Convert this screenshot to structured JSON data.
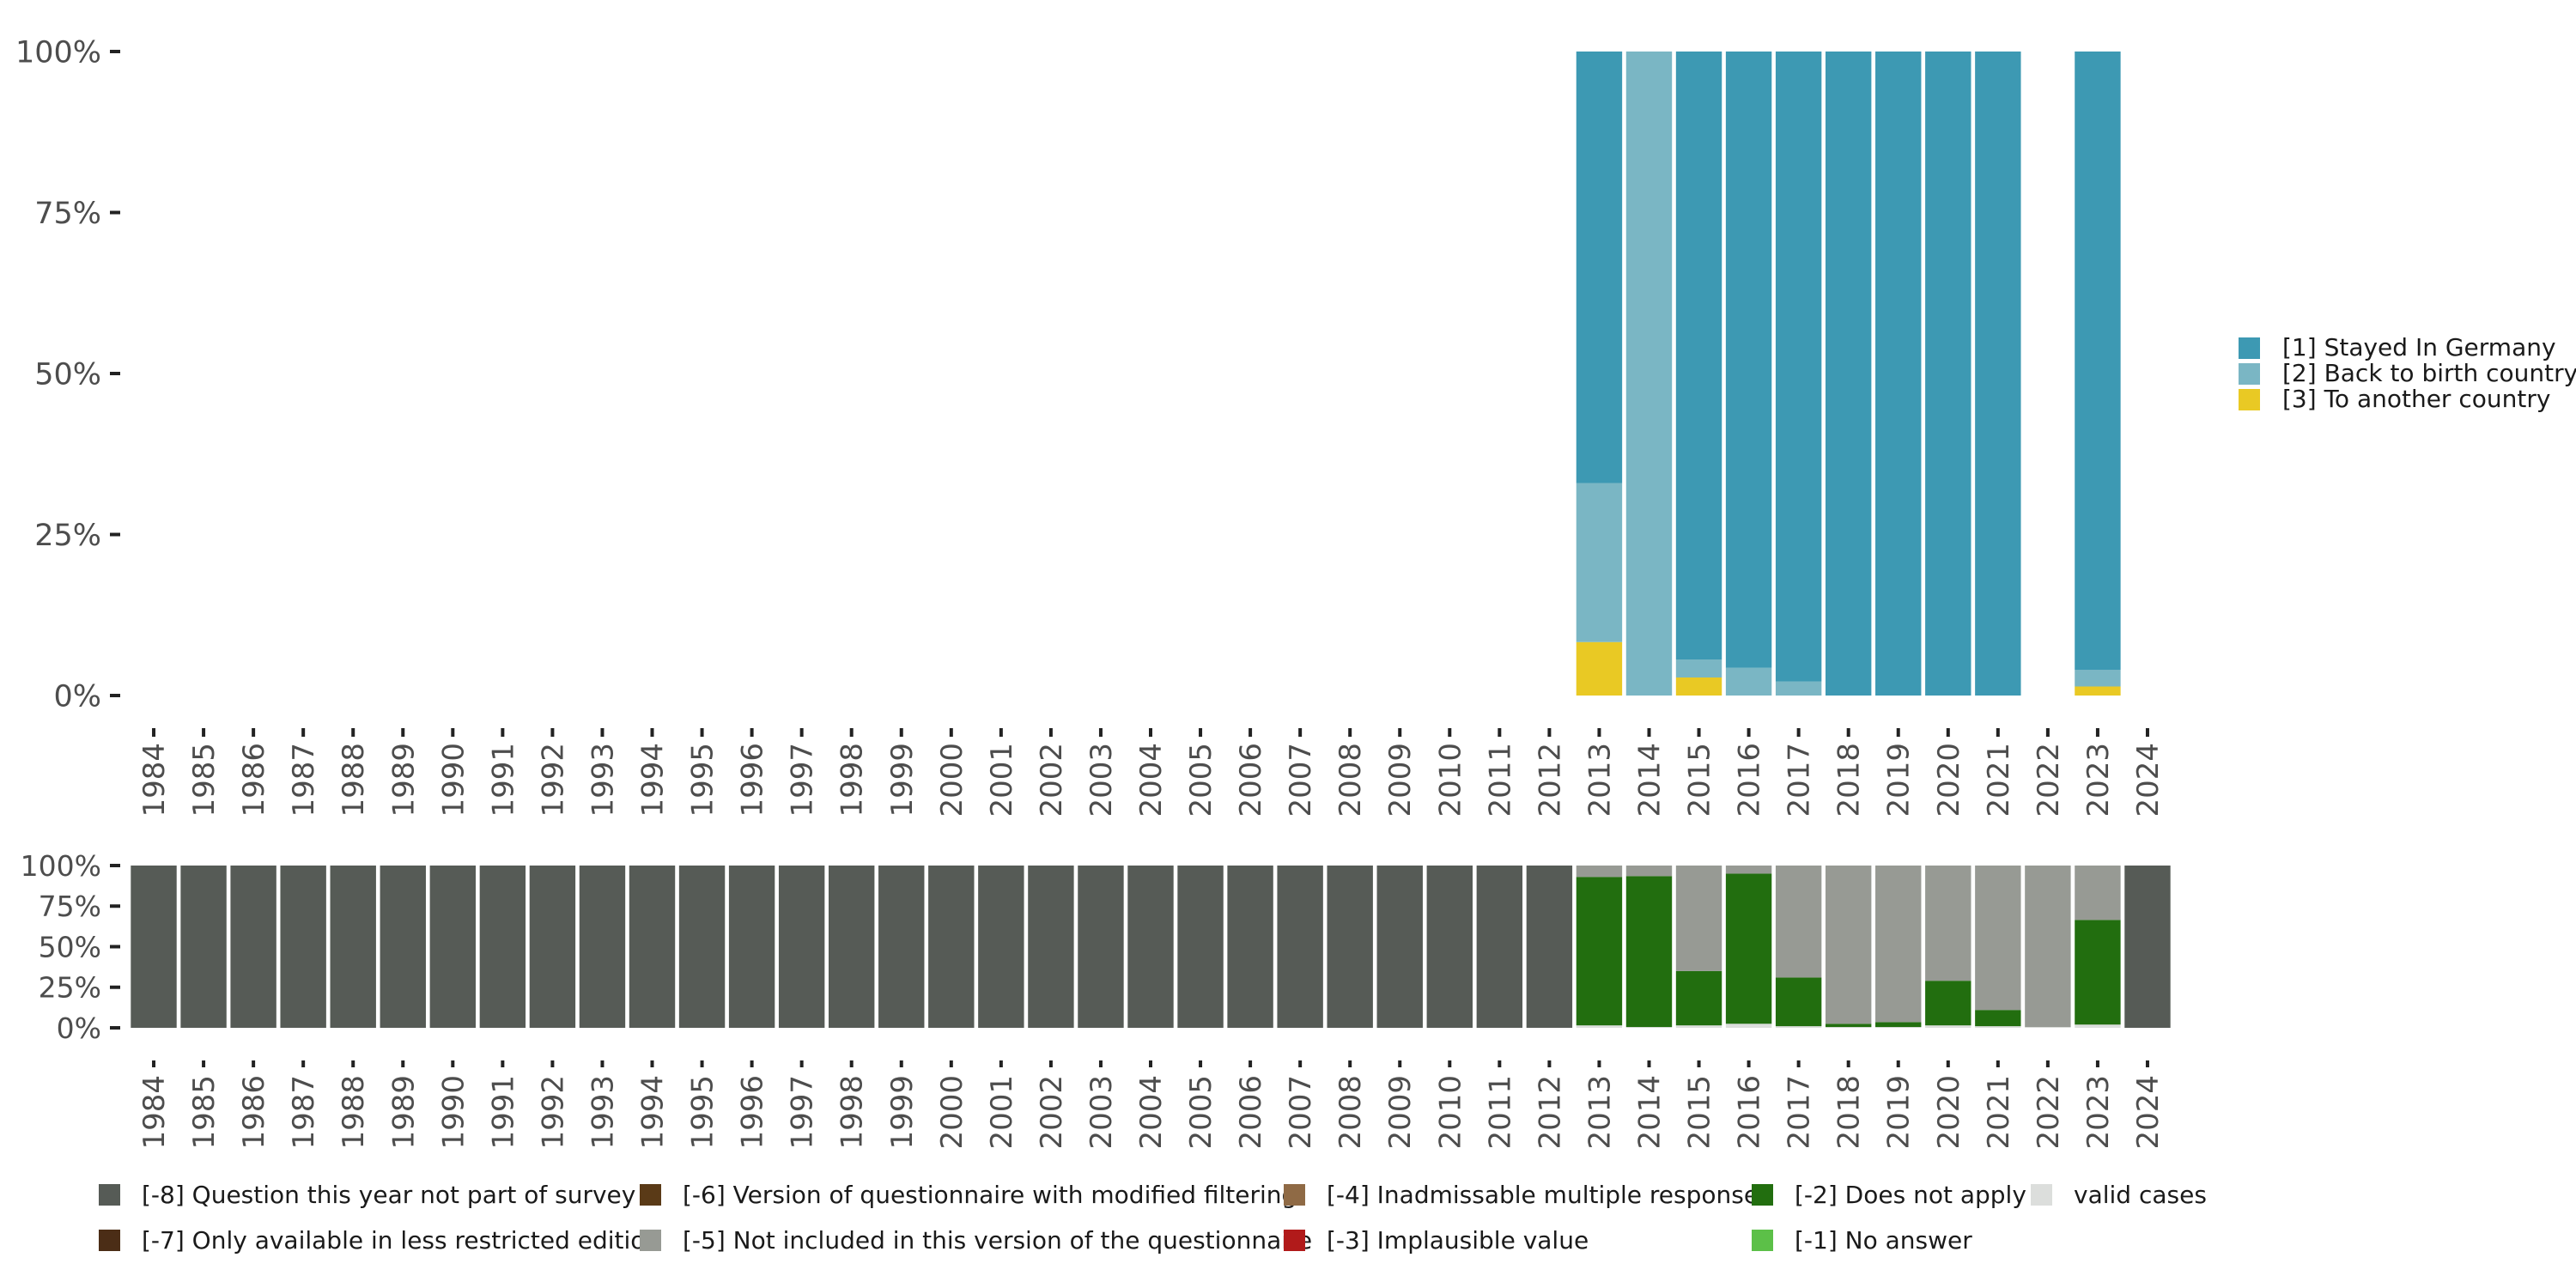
{
  "chart_data": [
    {
      "type": "bar",
      "stacked": true,
      "percent": true,
      "title": "",
      "xlabel": "",
      "ylabel": "",
      "ylim": [
        0,
        100
      ],
      "yticks": [
        "0%",
        "25%",
        "50%",
        "75%",
        "100%"
      ],
      "categories": [
        "1984",
        "1985",
        "1986",
        "1987",
        "1988",
        "1989",
        "1990",
        "1991",
        "1992",
        "1993",
        "1994",
        "1995",
        "1996",
        "1997",
        "1998",
        "1999",
        "2000",
        "2001",
        "2002",
        "2003",
        "2004",
        "2005",
        "2006",
        "2007",
        "2008",
        "2009",
        "2010",
        "2011",
        "2012",
        "2013",
        "2014",
        "2015",
        "2016",
        "2017",
        "2018",
        "2019",
        "2020",
        "2021",
        "2022",
        "2023",
        "2024"
      ],
      "legend_position": "right",
      "series": [
        {
          "name": "[3] To another country",
          "color": "#e9c924",
          "values": [
            0,
            0,
            0,
            0,
            0,
            0,
            0,
            0,
            0,
            0,
            0,
            0,
            0,
            0,
            0,
            0,
            0,
            0,
            0,
            0,
            0,
            0,
            0,
            0,
            0,
            0,
            0,
            0,
            0,
            8.3,
            0,
            2.8,
            0,
            0,
            0,
            0,
            0,
            0,
            0,
            1.4,
            0
          ]
        },
        {
          "name": "[2] Back to birth country",
          "color": "#7ab6c4",
          "values": [
            0,
            0,
            0,
            0,
            0,
            0,
            0,
            0,
            0,
            0,
            0,
            0,
            0,
            0,
            0,
            0,
            0,
            0,
            0,
            0,
            0,
            0,
            0,
            0,
            0,
            0,
            0,
            0,
            0,
            24.7,
            100,
            2.8,
            4.3,
            2.2,
            0,
            0,
            0,
            0,
            0,
            2.6,
            0
          ]
        },
        {
          "name": "[1] Stayed In Germany",
          "color": "#3d99b3",
          "values": [
            0,
            0,
            0,
            0,
            0,
            0,
            0,
            0,
            0,
            0,
            0,
            0,
            0,
            0,
            0,
            0,
            0,
            0,
            0,
            0,
            0,
            0,
            0,
            0,
            0,
            0,
            0,
            0,
            0,
            67,
            0,
            94.4,
            95.7,
            97.8,
            100,
            100,
            100,
            100,
            0,
            96,
            0
          ]
        }
      ]
    },
    {
      "type": "bar",
      "stacked": true,
      "percent": true,
      "title": "",
      "xlabel": "",
      "ylabel": "",
      "ylim": [
        0,
        100
      ],
      "yticks": [
        "0%",
        "25%",
        "50%",
        "75%",
        "100%"
      ],
      "categories": [
        "1984",
        "1985",
        "1986",
        "1987",
        "1988",
        "1989",
        "1990",
        "1991",
        "1992",
        "1993",
        "1994",
        "1995",
        "1996",
        "1997",
        "1998",
        "1999",
        "2000",
        "2001",
        "2002",
        "2003",
        "2004",
        "2005",
        "2006",
        "2007",
        "2008",
        "2009",
        "2010",
        "2011",
        "2012",
        "2013",
        "2014",
        "2015",
        "2016",
        "2017",
        "2018",
        "2019",
        "2020",
        "2021",
        "2022",
        "2023",
        "2024"
      ],
      "legend_position": "bottom",
      "series": [
        {
          "name": "valid cases",
          "color": "#dcdedc",
          "values": [
            0,
            0,
            0,
            0,
            0,
            0,
            0,
            0,
            0,
            0,
            0,
            0,
            0,
            0,
            0,
            0,
            0,
            0,
            0,
            0,
            0,
            0,
            0,
            0,
            0,
            0,
            0,
            0,
            0,
            1.5,
            0.5,
            1.5,
            2.5,
            1,
            0.5,
            0.5,
            1.5,
            1,
            0.5,
            2,
            0
          ]
        },
        {
          "name": "[-2] Does not apply",
          "color": "#226e0f",
          "values": [
            0,
            0,
            0,
            0,
            0,
            0,
            0,
            0,
            0,
            0,
            0,
            0,
            0,
            0,
            0,
            0,
            0,
            0,
            0,
            0,
            0,
            0,
            0,
            0,
            0,
            0,
            0,
            0,
            0,
            91.5,
            93,
            33.5,
            92.5,
            30,
            2,
            3,
            27.5,
            10,
            0,
            64.5,
            0
          ]
        },
        {
          "name": "[-5] Not included in this version of the questionnaire",
          "color": "#979a94",
          "values": [
            0,
            0,
            0,
            0,
            0,
            0,
            0,
            0,
            0,
            0,
            0,
            0,
            0,
            0,
            0,
            0,
            0,
            0,
            0,
            0,
            0,
            0,
            0,
            0,
            0,
            0,
            0,
            0,
            0,
            7,
            6.5,
            65,
            5,
            69,
            97.5,
            96.5,
            71,
            89,
            99.5,
            33.5,
            0
          ]
        },
        {
          "name": "[-8] Question this year not part of survey",
          "color": "#565b56",
          "values": [
            100,
            100,
            100,
            100,
            100,
            100,
            100,
            100,
            100,
            100,
            100,
            100,
            100,
            100,
            100,
            100,
            100,
            100,
            100,
            100,
            100,
            100,
            100,
            100,
            100,
            100,
            100,
            100,
            100,
            0,
            0,
            0,
            0,
            0,
            0,
            0,
            0,
            0,
            0,
            0,
            100
          ]
        }
      ]
    }
  ],
  "legend_bottom": [
    {
      "label": "[-8] Question this year not part of survey",
      "color": "#565b56"
    },
    {
      "label": "[-7] Only available in less restricted edition",
      "color": "#4b2d16"
    },
    {
      "label": "[-6] Version of questionnaire with modified filtering",
      "color": "#5a3a17"
    },
    {
      "label": "[-5] Not included in this version of the questionnaire",
      "color": "#979a94"
    },
    {
      "label": "[-4] Inadmissable multiple response",
      "color": "#8f6a45"
    },
    {
      "label": "[-3] Implausible value",
      "color": "#b11a1a"
    },
    {
      "label": "[-2] Does not apply",
      "color": "#226e0f"
    },
    {
      "label": "[-1] No answer",
      "color": "#5cc048"
    },
    {
      "label": "valid cases",
      "color": "#dcdedc"
    }
  ]
}
